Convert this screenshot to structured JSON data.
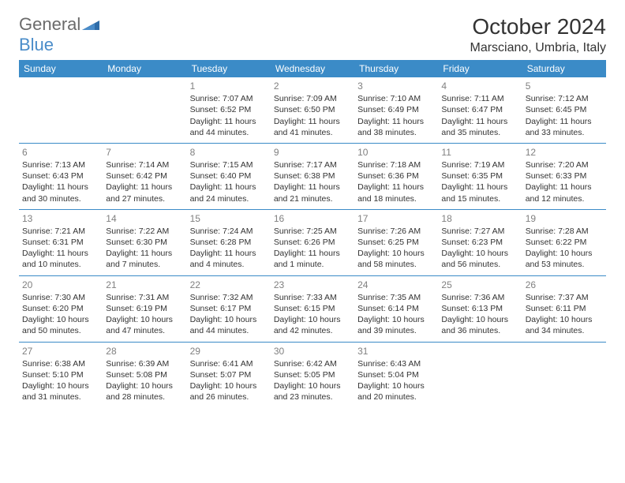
{
  "logo": {
    "word1": "General",
    "word2": "Blue"
  },
  "title": "October 2024",
  "location": "Marsciano, Umbria, Italy",
  "colors": {
    "header_bg": "#3b8bc7",
    "header_text": "#ffffff",
    "row_border": "#3b8bc7",
    "text": "#333333",
    "daynum": "#808080",
    "logo_gray": "#6b6b6b",
    "logo_blue": "#4a8cc9",
    "page_bg": "#ffffff"
  },
  "weekdays": [
    "Sunday",
    "Monday",
    "Tuesday",
    "Wednesday",
    "Thursday",
    "Friday",
    "Saturday"
  ],
  "weeks": [
    [
      null,
      null,
      {
        "n": "1",
        "sr": "Sunrise: 7:07 AM",
        "ss": "Sunset: 6:52 PM",
        "d1": "Daylight: 11 hours",
        "d2": "and 44 minutes."
      },
      {
        "n": "2",
        "sr": "Sunrise: 7:09 AM",
        "ss": "Sunset: 6:50 PM",
        "d1": "Daylight: 11 hours",
        "d2": "and 41 minutes."
      },
      {
        "n": "3",
        "sr": "Sunrise: 7:10 AM",
        "ss": "Sunset: 6:49 PM",
        "d1": "Daylight: 11 hours",
        "d2": "and 38 minutes."
      },
      {
        "n": "4",
        "sr": "Sunrise: 7:11 AM",
        "ss": "Sunset: 6:47 PM",
        "d1": "Daylight: 11 hours",
        "d2": "and 35 minutes."
      },
      {
        "n": "5",
        "sr": "Sunrise: 7:12 AM",
        "ss": "Sunset: 6:45 PM",
        "d1": "Daylight: 11 hours",
        "d2": "and 33 minutes."
      }
    ],
    [
      {
        "n": "6",
        "sr": "Sunrise: 7:13 AM",
        "ss": "Sunset: 6:43 PM",
        "d1": "Daylight: 11 hours",
        "d2": "and 30 minutes."
      },
      {
        "n": "7",
        "sr": "Sunrise: 7:14 AM",
        "ss": "Sunset: 6:42 PM",
        "d1": "Daylight: 11 hours",
        "d2": "and 27 minutes."
      },
      {
        "n": "8",
        "sr": "Sunrise: 7:15 AM",
        "ss": "Sunset: 6:40 PM",
        "d1": "Daylight: 11 hours",
        "d2": "and 24 minutes."
      },
      {
        "n": "9",
        "sr": "Sunrise: 7:17 AM",
        "ss": "Sunset: 6:38 PM",
        "d1": "Daylight: 11 hours",
        "d2": "and 21 minutes."
      },
      {
        "n": "10",
        "sr": "Sunrise: 7:18 AM",
        "ss": "Sunset: 6:36 PM",
        "d1": "Daylight: 11 hours",
        "d2": "and 18 minutes."
      },
      {
        "n": "11",
        "sr": "Sunrise: 7:19 AM",
        "ss": "Sunset: 6:35 PM",
        "d1": "Daylight: 11 hours",
        "d2": "and 15 minutes."
      },
      {
        "n": "12",
        "sr": "Sunrise: 7:20 AM",
        "ss": "Sunset: 6:33 PM",
        "d1": "Daylight: 11 hours",
        "d2": "and 12 minutes."
      }
    ],
    [
      {
        "n": "13",
        "sr": "Sunrise: 7:21 AM",
        "ss": "Sunset: 6:31 PM",
        "d1": "Daylight: 11 hours",
        "d2": "and 10 minutes."
      },
      {
        "n": "14",
        "sr": "Sunrise: 7:22 AM",
        "ss": "Sunset: 6:30 PM",
        "d1": "Daylight: 11 hours",
        "d2": "and 7 minutes."
      },
      {
        "n": "15",
        "sr": "Sunrise: 7:24 AM",
        "ss": "Sunset: 6:28 PM",
        "d1": "Daylight: 11 hours",
        "d2": "and 4 minutes."
      },
      {
        "n": "16",
        "sr": "Sunrise: 7:25 AM",
        "ss": "Sunset: 6:26 PM",
        "d1": "Daylight: 11 hours",
        "d2": "and 1 minute."
      },
      {
        "n": "17",
        "sr": "Sunrise: 7:26 AM",
        "ss": "Sunset: 6:25 PM",
        "d1": "Daylight: 10 hours",
        "d2": "and 58 minutes."
      },
      {
        "n": "18",
        "sr": "Sunrise: 7:27 AM",
        "ss": "Sunset: 6:23 PM",
        "d1": "Daylight: 10 hours",
        "d2": "and 56 minutes."
      },
      {
        "n": "19",
        "sr": "Sunrise: 7:28 AM",
        "ss": "Sunset: 6:22 PM",
        "d1": "Daylight: 10 hours",
        "d2": "and 53 minutes."
      }
    ],
    [
      {
        "n": "20",
        "sr": "Sunrise: 7:30 AM",
        "ss": "Sunset: 6:20 PM",
        "d1": "Daylight: 10 hours",
        "d2": "and 50 minutes."
      },
      {
        "n": "21",
        "sr": "Sunrise: 7:31 AM",
        "ss": "Sunset: 6:19 PM",
        "d1": "Daylight: 10 hours",
        "d2": "and 47 minutes."
      },
      {
        "n": "22",
        "sr": "Sunrise: 7:32 AM",
        "ss": "Sunset: 6:17 PM",
        "d1": "Daylight: 10 hours",
        "d2": "and 44 minutes."
      },
      {
        "n": "23",
        "sr": "Sunrise: 7:33 AM",
        "ss": "Sunset: 6:15 PM",
        "d1": "Daylight: 10 hours",
        "d2": "and 42 minutes."
      },
      {
        "n": "24",
        "sr": "Sunrise: 7:35 AM",
        "ss": "Sunset: 6:14 PM",
        "d1": "Daylight: 10 hours",
        "d2": "and 39 minutes."
      },
      {
        "n": "25",
        "sr": "Sunrise: 7:36 AM",
        "ss": "Sunset: 6:13 PM",
        "d1": "Daylight: 10 hours",
        "d2": "and 36 minutes."
      },
      {
        "n": "26",
        "sr": "Sunrise: 7:37 AM",
        "ss": "Sunset: 6:11 PM",
        "d1": "Daylight: 10 hours",
        "d2": "and 34 minutes."
      }
    ],
    [
      {
        "n": "27",
        "sr": "Sunrise: 6:38 AM",
        "ss": "Sunset: 5:10 PM",
        "d1": "Daylight: 10 hours",
        "d2": "and 31 minutes."
      },
      {
        "n": "28",
        "sr": "Sunrise: 6:39 AM",
        "ss": "Sunset: 5:08 PM",
        "d1": "Daylight: 10 hours",
        "d2": "and 28 minutes."
      },
      {
        "n": "29",
        "sr": "Sunrise: 6:41 AM",
        "ss": "Sunset: 5:07 PM",
        "d1": "Daylight: 10 hours",
        "d2": "and 26 minutes."
      },
      {
        "n": "30",
        "sr": "Sunrise: 6:42 AM",
        "ss": "Sunset: 5:05 PM",
        "d1": "Daylight: 10 hours",
        "d2": "and 23 minutes."
      },
      {
        "n": "31",
        "sr": "Sunrise: 6:43 AM",
        "ss": "Sunset: 5:04 PM",
        "d1": "Daylight: 10 hours",
        "d2": "and 20 minutes."
      },
      null,
      null
    ]
  ]
}
